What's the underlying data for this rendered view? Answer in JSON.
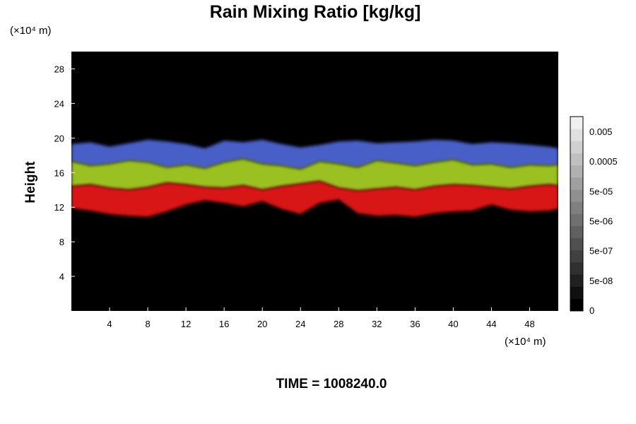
{
  "chart_data": {
    "type": "heatmap",
    "title": "Rain Mixing Ratio [kg/kg]",
    "x_unit_label": "(×10⁴ m)",
    "y_unit_label": "(×10⁴ m)",
    "xlabel": "",
    "ylabel": "Height",
    "xlim": [
      0,
      51
    ],
    "ylim": [
      0,
      30
    ],
    "x_ticks": [
      4,
      8,
      12,
      16,
      20,
      24,
      28,
      32,
      36,
      40,
      44,
      48
    ],
    "y_ticks": [
      4,
      8,
      12,
      16,
      20,
      24,
      28
    ],
    "grid": false,
    "time_label": "TIME = 1008240.0",
    "colorbar": {
      "tick_labels": [
        "0",
        "5e-08",
        "5e-07",
        "5e-06",
        "5e-05",
        "0.0005",
        "0.005"
      ],
      "levels": 16,
      "color_low": "#000000",
      "color_high": "#f0f0f0"
    },
    "layers": [
      {
        "name": "upper",
        "color": "#4a5ec8",
        "approx_height_range": [
          17,
          20
        ]
      },
      {
        "name": "middle",
        "color": "#9ac020",
        "approx_height_range": [
          14,
          17
        ]
      },
      {
        "name": "lower",
        "color": "#d81818",
        "approx_height_range": [
          11,
          14.5
        ]
      }
    ],
    "band_profile": {
      "x": [
        0,
        2,
        4,
        6,
        8,
        10,
        12,
        14,
        16,
        18,
        20,
        22,
        24,
        26,
        28,
        30,
        32,
        34,
        36,
        38,
        40,
        42,
        44,
        46,
        48,
        50,
        51
      ],
      "top": [
        19.3,
        19.5,
        19.0,
        19.4,
        19.8,
        19.6,
        19.3,
        18.8,
        19.7,
        19.5,
        19.8,
        19.3,
        18.9,
        19.2,
        19.6,
        19.7,
        19.4,
        19.5,
        19.6,
        19.8,
        19.7,
        19.3,
        19.5,
        19.4,
        19.2,
        19.0,
        18.8
      ],
      "upper_to_mid": [
        17.3,
        16.8,
        17.0,
        17.4,
        17.2,
        16.6,
        16.9,
        16.5,
        17.2,
        17.6,
        17.0,
        16.8,
        16.4,
        17.3,
        17.0,
        16.6,
        17.4,
        17.1,
        16.8,
        17.2,
        17.5,
        16.9,
        17.0,
        16.6,
        16.9,
        16.8,
        16.9
      ],
      "mid_to_low": [
        14.4,
        14.6,
        14.2,
        14.0,
        14.3,
        14.8,
        14.6,
        14.3,
        14.2,
        14.5,
        14.0,
        14.4,
        14.7,
        15.0,
        14.2,
        13.9,
        14.1,
        14.3,
        14.0,
        14.4,
        14.6,
        14.5,
        14.3,
        14.1,
        14.4,
        14.6,
        14.5
      ],
      "bottom": [
        11.9,
        11.6,
        11.2,
        11.0,
        10.9,
        11.5,
        12.3,
        12.8,
        12.5,
        12.1,
        12.7,
        11.8,
        11.2,
        12.5,
        12.9,
        11.3,
        11.0,
        11.1,
        10.9,
        11.3,
        11.5,
        11.6,
        12.3,
        11.7,
        11.5,
        11.6,
        11.8
      ]
    }
  }
}
